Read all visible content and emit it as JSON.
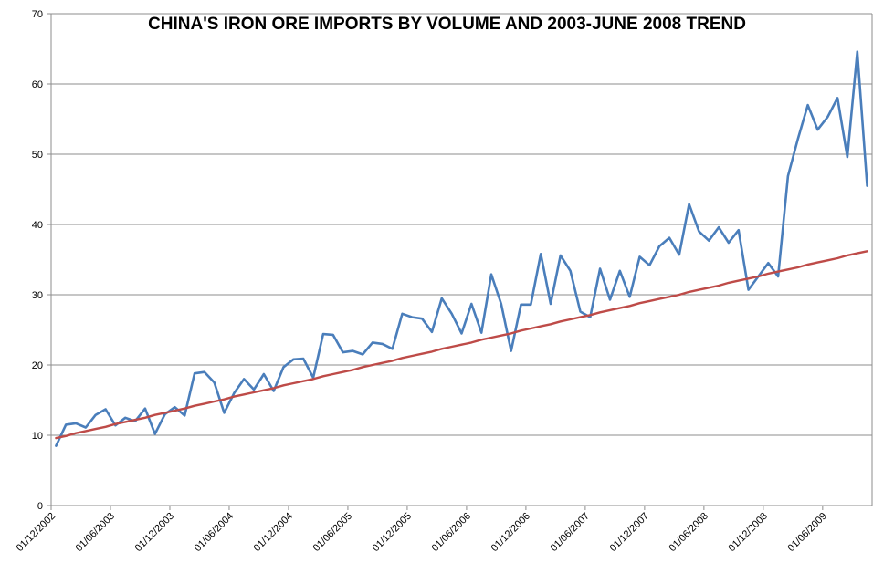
{
  "chart_data": {
    "type": "line",
    "title": "CHINA'S IRON ORE IMPORTS BY VOLUME AND 2003-JUNE 2008 TREND",
    "xlabel": "",
    "ylabel": "",
    "ylim": [
      0,
      70
    ],
    "yticks": [
      0,
      10,
      20,
      30,
      40,
      50,
      60,
      70
    ],
    "grid": true,
    "xtick_labels": [
      "01/12/2002",
      "01/06/2003",
      "01/12/2003",
      "01/06/2004",
      "01/12/2004",
      "01/06/2005",
      "01/12/2005",
      "01/06/2006",
      "01/12/2006",
      "01/06/2007",
      "01/12/2007",
      "01/06/2008",
      "01/12/2008",
      "01/06/2009"
    ],
    "xtick_start_month_index": 0,
    "xtick_step_months": 6,
    "months_count": 83,
    "series": [
      {
        "color": "#4a7ebb",
        "values": [
          8.5,
          11.5,
          11.7,
          11.1,
          12.9,
          13.7,
          11.4,
          12.5,
          12.0,
          13.8,
          10.2,
          13.0,
          14.0,
          12.8,
          18.8,
          19.0,
          17.5,
          13.2,
          16.0,
          18.0,
          16.5,
          18.7,
          16.3,
          19.7,
          20.8,
          20.9,
          18.2,
          24.4,
          24.3,
          21.8,
          22.0,
          21.5,
          23.2,
          23.0,
          22.3,
          27.3,
          26.8,
          26.6,
          24.7,
          29.5,
          27.3,
          24.5,
          28.7,
          24.6,
          32.9,
          28.7,
          22.0,
          28.6,
          28.6,
          35.8,
          28.7,
          35.6,
          33.4,
          27.6,
          26.8,
          33.7,
          29.3,
          33.4,
          29.7,
          35.4,
          34.2,
          36.9,
          38.1,
          35.7,
          42.9,
          39.0,
          37.7,
          39.6,
          37.4,
          39.2,
          30.7,
          32.6,
          34.5,
          32.6,
          46.9,
          52.2,
          57.0,
          53.5,
          55.3,
          58.0,
          49.6,
          64.6,
          45.5
        ]
      },
      {
        "color": "#be4b48",
        "values": [
          9.6,
          9.9,
          10.3,
          10.6,
          10.9,
          11.2,
          11.6,
          11.9,
          12.2,
          12.5,
          12.9,
          13.2,
          13.5,
          13.8,
          14.2,
          14.5,
          14.8,
          15.1,
          15.5,
          15.8,
          16.1,
          16.4,
          16.7,
          17.1,
          17.4,
          17.7,
          18.0,
          18.4,
          18.7,
          19.0,
          19.3,
          19.7,
          20.0,
          20.3,
          20.6,
          21.0,
          21.3,
          21.6,
          21.9,
          22.3,
          22.6,
          22.9,
          23.2,
          23.6,
          23.9,
          24.2,
          24.5,
          24.9,
          25.2,
          25.5,
          25.8,
          26.2,
          26.5,
          26.8,
          27.1,
          27.5,
          27.8,
          28.1,
          28.4,
          28.8,
          29.1,
          29.4,
          29.7,
          30.0,
          30.4,
          30.7,
          31.0,
          31.3,
          31.7,
          32.0,
          32.3,
          32.6,
          33.0,
          33.3,
          33.6,
          33.9,
          34.3,
          34.6,
          34.9,
          35.2,
          35.6,
          35.9,
          36.2
        ]
      }
    ]
  }
}
